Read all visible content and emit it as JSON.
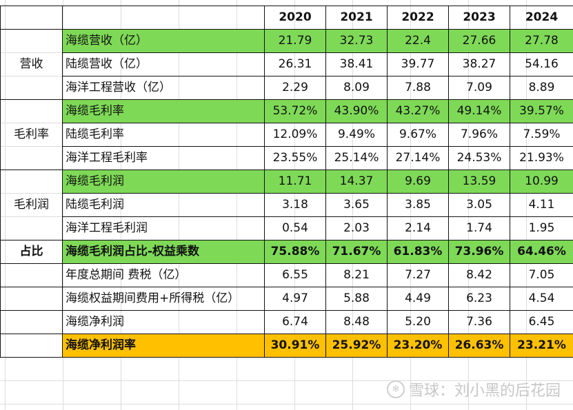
{
  "header": {
    "years": [
      "2020",
      "2021",
      "2022",
      "2023",
      "2024"
    ]
  },
  "groups": {
    "revenue": "营收",
    "gross_margin": "毛利率",
    "gross_profit": "毛利润",
    "share": "占比"
  },
  "rows": [
    {
      "label": "海缆营收（亿）",
      "values": [
        "21.79",
        "32.73",
        "22.4",
        "27.66",
        "27.78"
      ]
    },
    {
      "label": "陆缆营收（亿）",
      "values": [
        "26.31",
        "38.41",
        "39.77",
        "38.27",
        "54.16"
      ]
    },
    {
      "label": "海洋工程营收（亿）",
      "values": [
        "2.29",
        "8.09",
        "7.88",
        "7.09",
        "8.89"
      ]
    },
    {
      "label": "海缆毛利率",
      "values": [
        "53.72%",
        "43.90%",
        "43.27%",
        "49.14%",
        "39.57%"
      ]
    },
    {
      "label": "陆缆毛利率",
      "values": [
        "12.09%",
        "9.49%",
        "9.67%",
        "7.96%",
        "7.59%"
      ]
    },
    {
      "label": "海洋工程毛利率",
      "values": [
        "23.55%",
        "25.14%",
        "27.14%",
        "24.53%",
        "21.93%"
      ]
    },
    {
      "label": "海缆毛利润",
      "values": [
        "11.71",
        "14.37",
        "9.69",
        "13.59",
        "10.99"
      ]
    },
    {
      "label": "陆缆毛利润",
      "values": [
        "3.18",
        "3.65",
        "3.85",
        "3.05",
        "4.11"
      ]
    },
    {
      "label": "海洋工程毛利润",
      "values": [
        "0.54",
        "2.03",
        "2.14",
        "1.74",
        "1.95"
      ]
    },
    {
      "label": "海缆毛利润占比-权益乘数",
      "values": [
        "75.88%",
        "71.67%",
        "61.83%",
        "73.96%",
        "64.46%"
      ]
    },
    {
      "label": "年度总期间 费税（亿）",
      "values": [
        "6.55",
        "8.21",
        "7.27",
        "8.42",
        "7.05"
      ]
    },
    {
      "label": "海缆权益期间费用+所得税（亿）",
      "values": [
        "4.97",
        "5.88",
        "4.49",
        "6.23",
        "4.54"
      ]
    },
    {
      "label": "海缆净利润",
      "values": [
        "6.74",
        "8.48",
        "5.20",
        "7.36",
        "6.45"
      ]
    },
    {
      "label": "海缆净利润率",
      "values": [
        "30.91%",
        "25.92%",
        "23.20%",
        "26.63%",
        "23.21%"
      ]
    }
  ],
  "colors": {
    "highlight_green": "#7ed957",
    "highlight_orange": "#ffc000"
  },
  "watermark": {
    "icon": "xueqiu-logo-icon",
    "text": "雪球：刘小黑的后花园"
  }
}
